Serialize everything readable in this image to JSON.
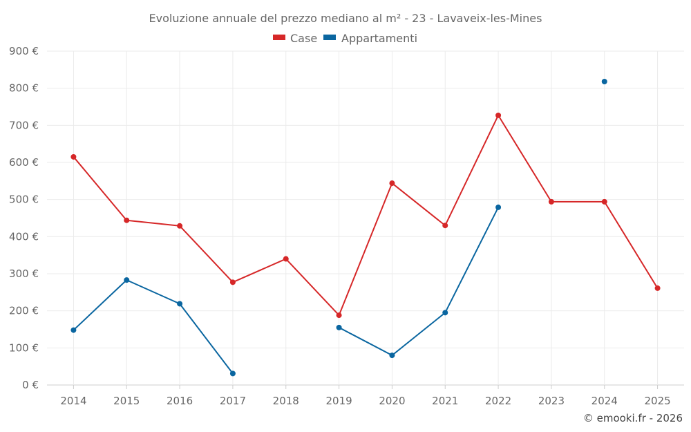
{
  "chart_data": {
    "type": "line",
    "title": "Evoluzione annuale del prezzo mediano al m² - 23 - Lavaveix-les-Mines",
    "categories": [
      "2014",
      "2015",
      "2016",
      "2017",
      "2018",
      "2019",
      "2020",
      "2021",
      "2022",
      "2023",
      "2024",
      "2025"
    ],
    "ylim": [
      0,
      900
    ],
    "ytick_labels": [
      "0 €",
      "100 €",
      "200 €",
      "300 €",
      "400 €",
      "500 €",
      "600 €",
      "700 €",
      "800 €",
      "900 €"
    ],
    "series": [
      {
        "name": "Case",
        "color": "#d62728",
        "values": [
          615,
          444,
          429,
          277,
          340,
          188,
          544,
          430,
          727,
          494,
          494,
          261
        ]
      },
      {
        "name": "Appartamenti",
        "color": "#0a66a0",
        "values": [
          148,
          283,
          219,
          31,
          null,
          155,
          80,
          195,
          479,
          null,
          818,
          null
        ]
      }
    ],
    "legend": "top-center",
    "grid": true,
    "credit": "© emooki.fr - 2026"
  }
}
